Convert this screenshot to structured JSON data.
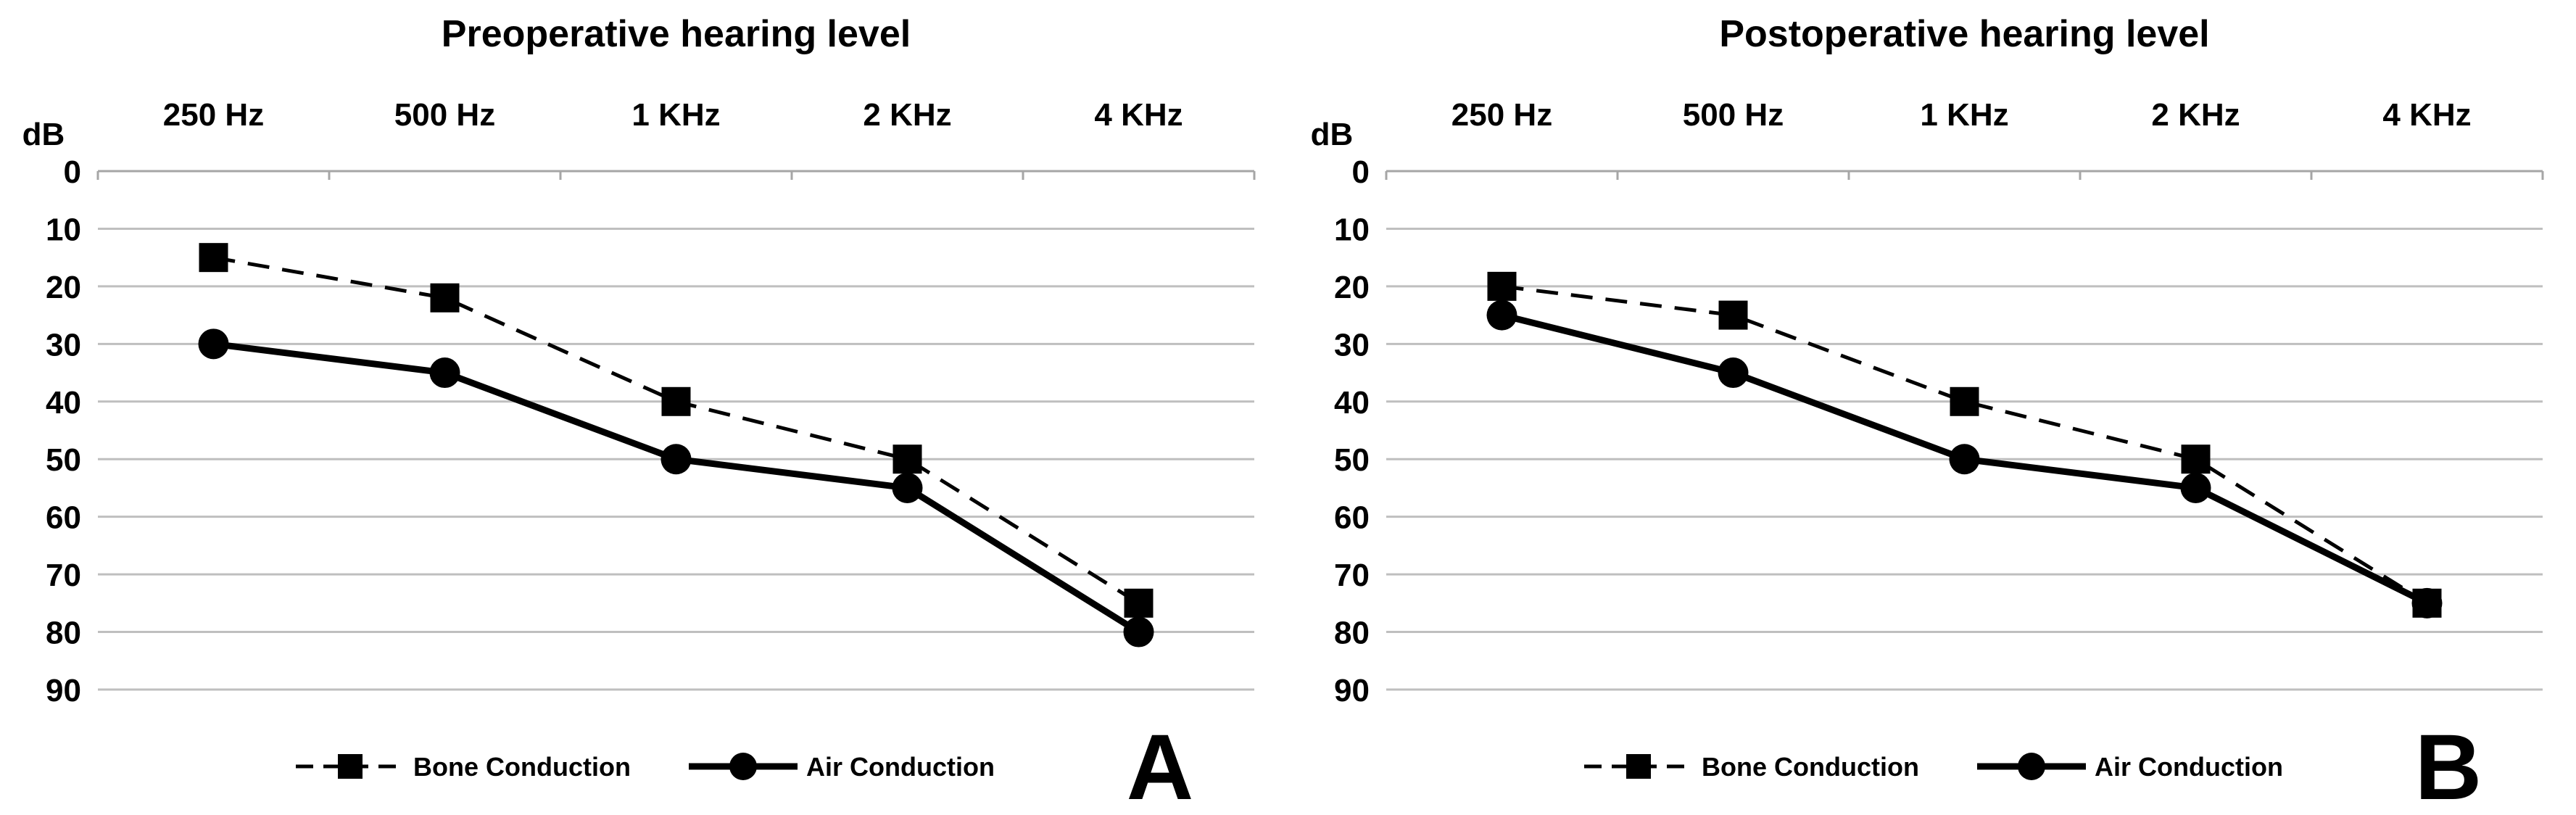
{
  "chart_data": [
    {
      "type": "line",
      "title": "Preoperative hearing level",
      "categories": [
        "250 Hz",
        "500 Hz",
        "1 KHz",
        "2 KHz",
        "4 KHz"
      ],
      "ylabel": "dB",
      "ylim": [
        0,
        90
      ],
      "y_inverted": true,
      "y_ticks": [
        "0",
        "10",
        "20",
        "30",
        "40",
        "50",
        "60",
        "70",
        "80",
        "90"
      ],
      "x_axis_position": "top",
      "grid": true,
      "legend_position": "bottom",
      "panel_label": "A",
      "series": [
        {
          "name": "Bone Conduction",
          "style": "dashed",
          "marker": "square",
          "values": [
            15,
            22,
            40,
            50,
            75
          ]
        },
        {
          "name": "Air Conduction",
          "style": "solid",
          "marker": "circle",
          "values": [
            30,
            35,
            50,
            55,
            80
          ]
        }
      ]
    },
    {
      "type": "line",
      "title": "Postoperative hearing level",
      "categories": [
        "250 Hz",
        "500 Hz",
        "1 KHz",
        "2 KHz",
        "4 KHz"
      ],
      "ylabel": "dB",
      "ylim": [
        0,
        90
      ],
      "y_inverted": true,
      "y_ticks": [
        "0",
        "10",
        "20",
        "30",
        "40",
        "50",
        "60",
        "70",
        "80",
        "90"
      ],
      "x_axis_position": "top",
      "grid": true,
      "legend_position": "bottom",
      "panel_label": "B",
      "series": [
        {
          "name": "Bone Conduction",
          "style": "dashed",
          "marker": "square",
          "values": [
            20,
            25,
            40,
            50,
            75
          ]
        },
        {
          "name": "Air Conduction",
          "style": "solid",
          "marker": "circle",
          "values": [
            25,
            35,
            50,
            55,
            75
          ]
        }
      ]
    }
  ],
  "colors": {
    "lines": "#000000",
    "grid": "#bfbfbf",
    "background": "#ffffff"
  }
}
